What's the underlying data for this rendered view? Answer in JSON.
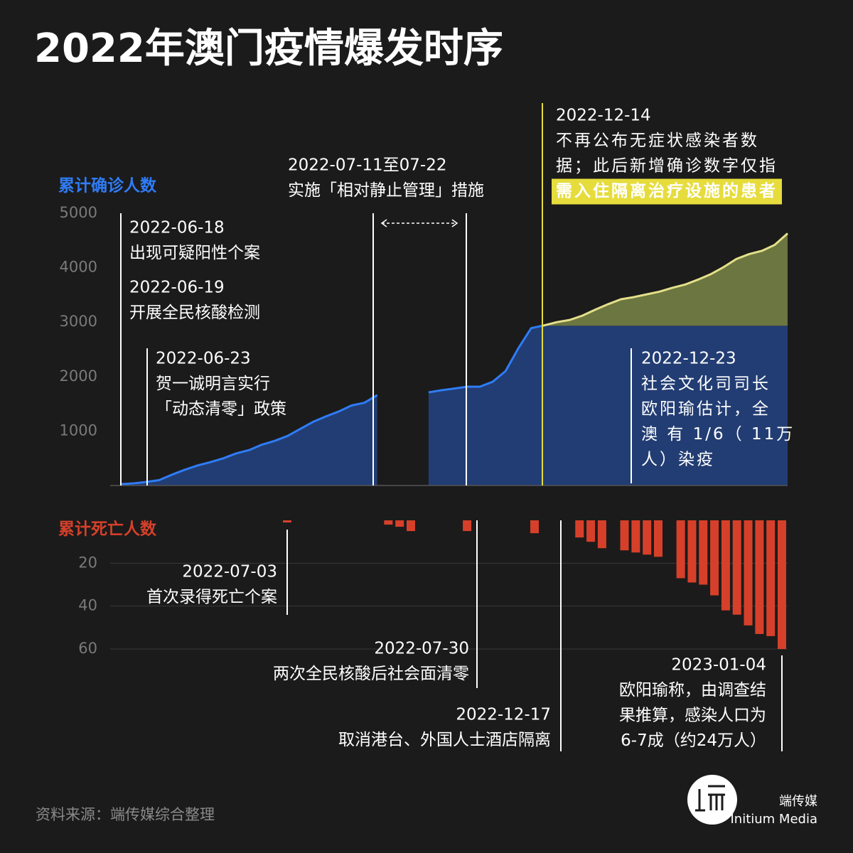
{
  "title": "2022年澳门疫情爆发时序",
  "source": "资料来源：端传媒综合整理",
  "logo": {
    "name": "端传媒",
    "name_en": "Initium Media"
  },
  "chart_data": [
    {
      "type": "area",
      "axis_label": "累计确诊人数",
      "series": [
        {
          "color": "#2f7cf6",
          "values": [
            25,
            40,
            65,
            100,
            200,
            290,
            370,
            430,
            500,
            590,
            650,
            750,
            820,
            910,
            1040,
            1170,
            1270,
            1360,
            1470,
            1520,
            1660,
            null,
            null,
            null,
            1710,
            1750,
            1780,
            1815,
            1815,
            1905,
            2100,
            2520,
            2890,
            2940,
            3000,
            3040,
            3120,
            3230,
            3330,
            3420,
            3460,
            3510,
            3560,
            3630,
            3690,
            3780,
            3880,
            4010,
            4160,
            4250,
            4310,
            4420,
            4630
          ]
        }
      ],
      "ylim": [
        0,
        5000
      ],
      "yticks": [
        1000,
        2000,
        3000,
        4000,
        5000
      ],
      "annotations": [
        {
          "date": "2022-06-18",
          "lines": [
            "出现可疑阳性个案"
          ]
        },
        {
          "date": "2022-06-19",
          "lines": [
            "开展全民核酸检测"
          ]
        },
        {
          "date": "2022-06-23",
          "lines": [
            "贺一诚明言实行",
            "「动态清零」政策"
          ]
        },
        {
          "date": "2022-07-11至07-22",
          "lines": [
            "实施「相对静止管理」措施"
          ]
        },
        {
          "date": "2022-12-14",
          "lines": [
            "不再公布无症状感染者数",
            "据；此后新增确诊数字仅指",
            "需入住隔离治疗设施的患者"
          ]
        },
        {
          "date": "2022-12-23",
          "lines": [
            "社会文化司司长",
            "欧阳瑜估计，全",
            "澳 有 1/6（ 11万",
            "人）染疫"
          ]
        }
      ]
    },
    {
      "type": "bar",
      "axis_label": "累计死亡人数",
      "color": "#d6402a",
      "inverted": true,
      "grid": true,
      "values": [
        1,
        null,
        null,
        null,
        null,
        null,
        null,
        null,
        null,
        2,
        3,
        5,
        null,
        null,
        null,
        null,
        5,
        null,
        null,
        null,
        null,
        null,
        6,
        null,
        null,
        null,
        8,
        10,
        13,
        null,
        14,
        15,
        16,
        17,
        null,
        27,
        29,
        30,
        35,
        42,
        44,
        49,
        53,
        54,
        60
      ],
      "ylim": [
        0,
        60
      ],
      "yticks": [
        20,
        40,
        60
      ],
      "annotations": [
        {
          "date": "2022-07-03",
          "lines": [
            "首次录得死亡个案"
          ]
        },
        {
          "date": "2022-07-30",
          "lines": [
            "两次全民核酸后社会面清零"
          ]
        },
        {
          "date": "2022-12-17",
          "lines": [
            "取消港台、外国人士酒店隔离"
          ]
        },
        {
          "date": "2023-01-04",
          "lines": [
            "欧阳瑜称，由调查结",
            "果推算，感染人口为",
            "6-7成（约24万人）"
          ]
        }
      ]
    }
  ]
}
